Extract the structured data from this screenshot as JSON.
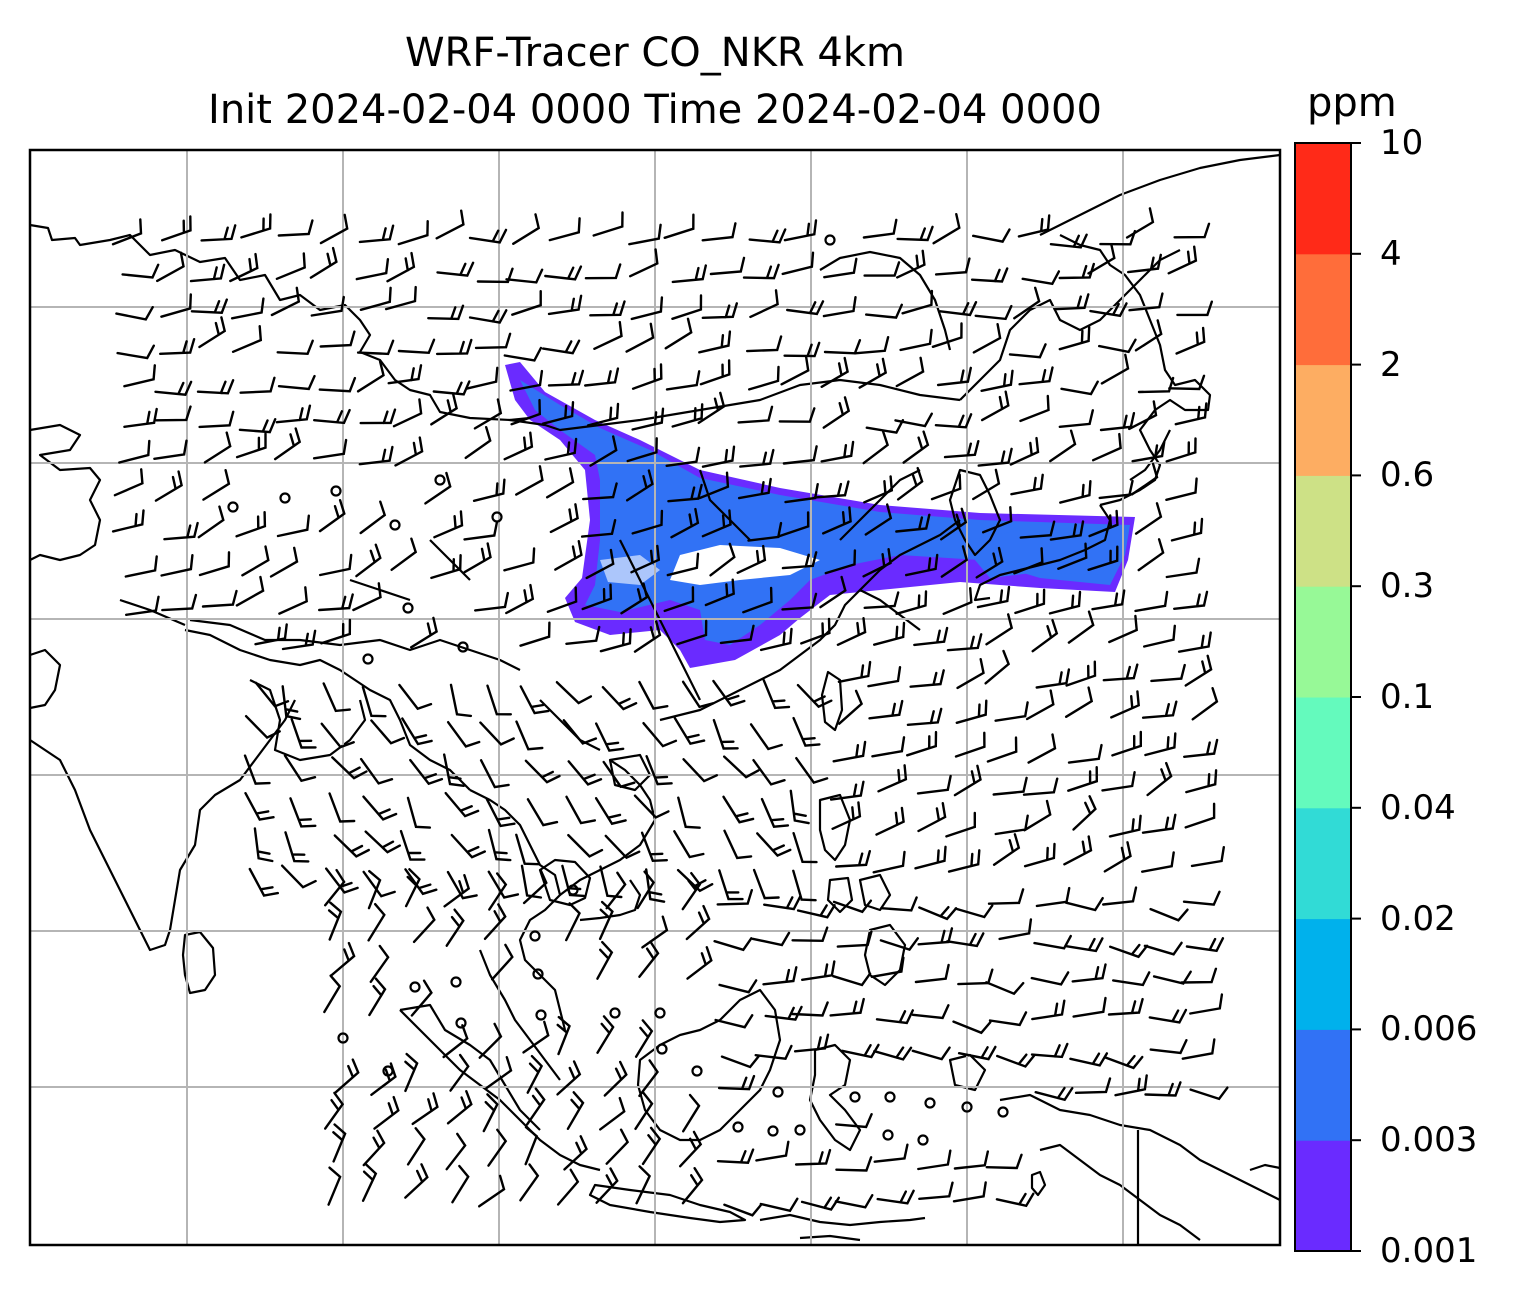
{
  "title": {
    "line1": "WRF-Tracer CO_NKR 4km",
    "line2": "Init 2024-02-04 0000 Time 2024-02-04 0000"
  },
  "colorbar": {
    "unit": "ppm",
    "levels": [
      "0.001",
      "0.003",
      "0.006",
      "0.02",
      "0.04",
      "0.1",
      "0.3",
      "0.6",
      "2",
      "4",
      "10"
    ],
    "colors": [
      "#6a2bff",
      "#3172f5",
      "#00b1ec",
      "#31dbd6",
      "#64fabd",
      "#97f997",
      "#cde186",
      "#fdad62",
      "#ff6d3a",
      "#ff2a18"
    ]
  },
  "map": {
    "gridlines": "on",
    "plume_colors": {
      "outer": "#6a2bff",
      "inner": "#3172f5"
    },
    "features": [
      "coastlines",
      "wind-barbs",
      "co-tracer-plume"
    ]
  }
}
